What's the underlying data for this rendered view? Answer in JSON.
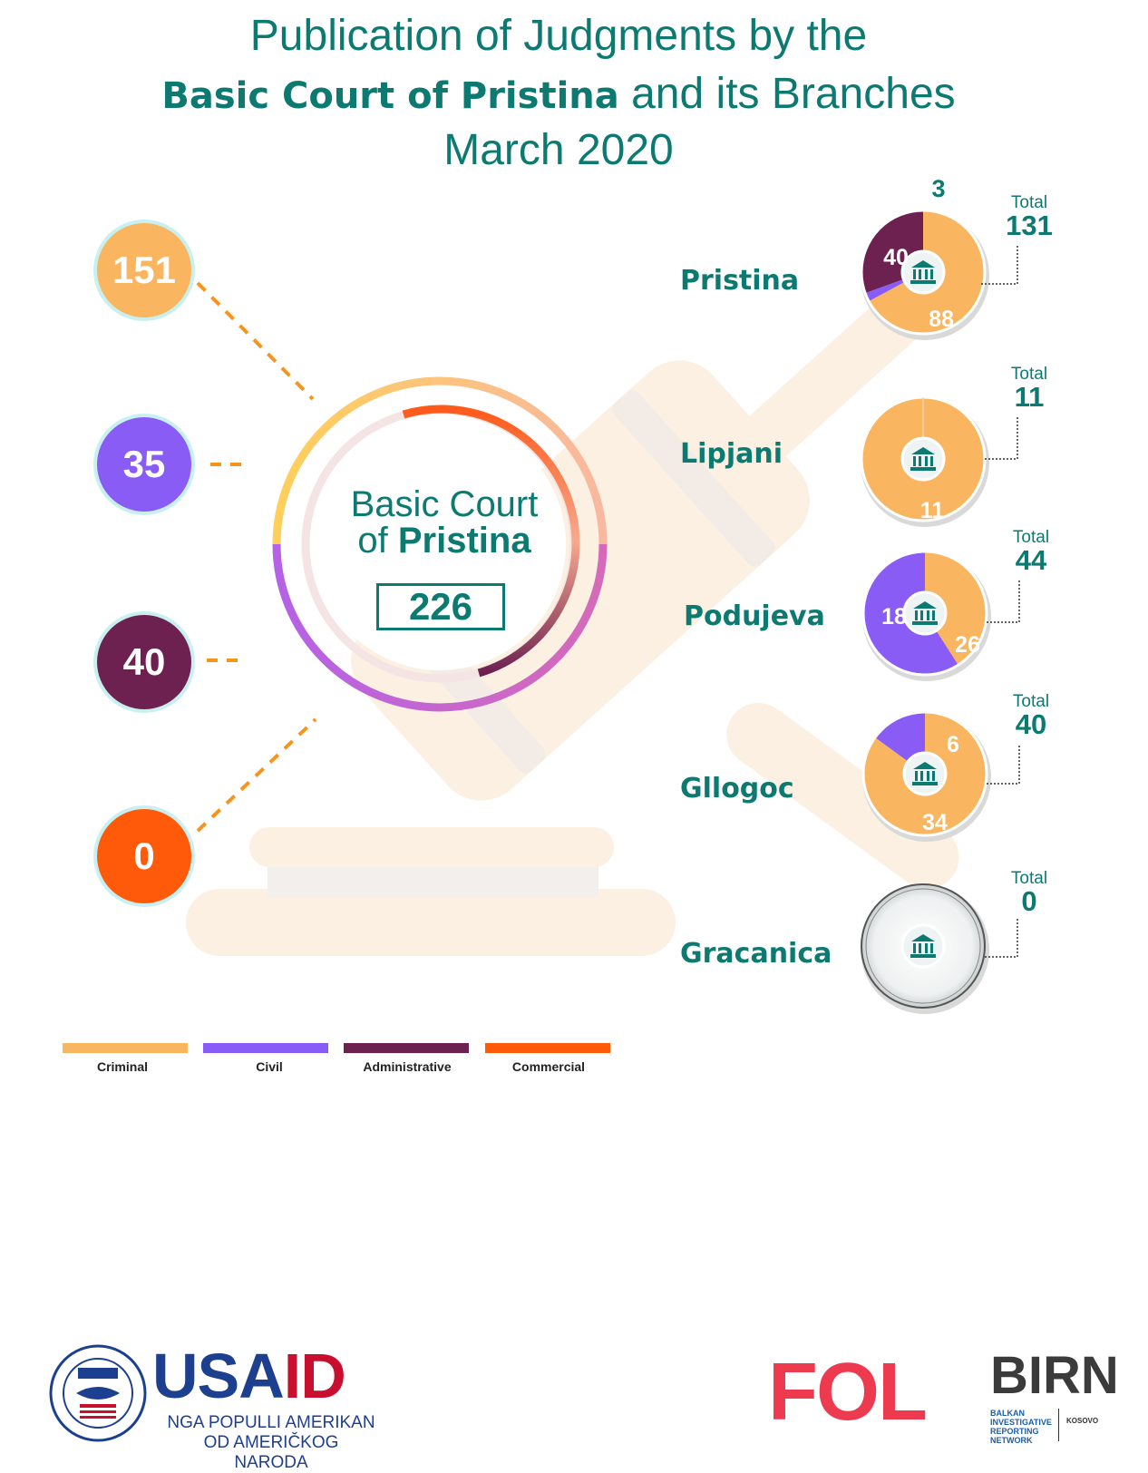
{
  "title": {
    "line1": "Publication of Judgments by the",
    "line2_bold": "Basic Court of Pristina",
    "line2_rest": " and its Branches",
    "line3": "March 2020"
  },
  "center": {
    "label_line1": "Basic Court",
    "label_line2_prefix": "of ",
    "label_line2_bold": "Pristina",
    "total": "226"
  },
  "colors": {
    "criminal": "#f9b55f",
    "civil": "#8a5cf6",
    "administrative": "#6d2150",
    "commercial": "#ff5a0a",
    "teal": "#0d7a72",
    "gavel": "#fbf0e2"
  },
  "legend": [
    "Criminal",
    "Civil",
    "Administrative",
    "Commercial"
  ],
  "chart_data": [
    {
      "type": "bar",
      "title": "Basic Court of Pristina",
      "categories": [
        "Criminal",
        "Civil",
        "Administrative",
        "Commercial"
      ],
      "values": [
        151,
        35,
        40,
        0
      ],
      "total": 226
    },
    {
      "type": "pie",
      "title": "Pristina",
      "categories": [
        "Criminal",
        "Civil",
        "Administrative",
        "Commercial"
      ],
      "values": [
        88,
        3,
        40,
        0
      ],
      "total": 131
    },
    {
      "type": "pie",
      "title": "Lipjani",
      "categories": [
        "Criminal",
        "Civil",
        "Administrative",
        "Commercial"
      ],
      "values": [
        11,
        0,
        0,
        0
      ],
      "total": 11
    },
    {
      "type": "pie",
      "title": "Podujeva",
      "categories": [
        "Criminal",
        "Civil",
        "Administrative",
        "Commercial"
      ],
      "values": [
        18,
        26,
        0,
        0
      ],
      "total": 44
    },
    {
      "type": "pie",
      "title": "Gllogoc",
      "categories": [
        "Criminal",
        "Civil",
        "Administrative",
        "Commercial"
      ],
      "values": [
        34,
        6,
        0,
        0
      ],
      "total": 40
    },
    {
      "type": "pie",
      "title": "Gracanica",
      "categories": [
        "Criminal",
        "Civil",
        "Administrative",
        "Commercial"
      ],
      "values": [
        0,
        0,
        0,
        0
      ],
      "total": 0
    }
  ],
  "total_label": "Total",
  "logos": {
    "usaid_a": "USA",
    "usaid_b": "ID",
    "usaid_line1": "NGA POPULLI AMERIKAN",
    "usaid_line2": "OD AMERIČKOG NARODA",
    "fol": "FOL",
    "birn": "BIRN",
    "birn_sub": "BALKAN INVESTIGATIVE REPORTING NETWORK",
    "birn_kosovo": "KOSOVO"
  }
}
